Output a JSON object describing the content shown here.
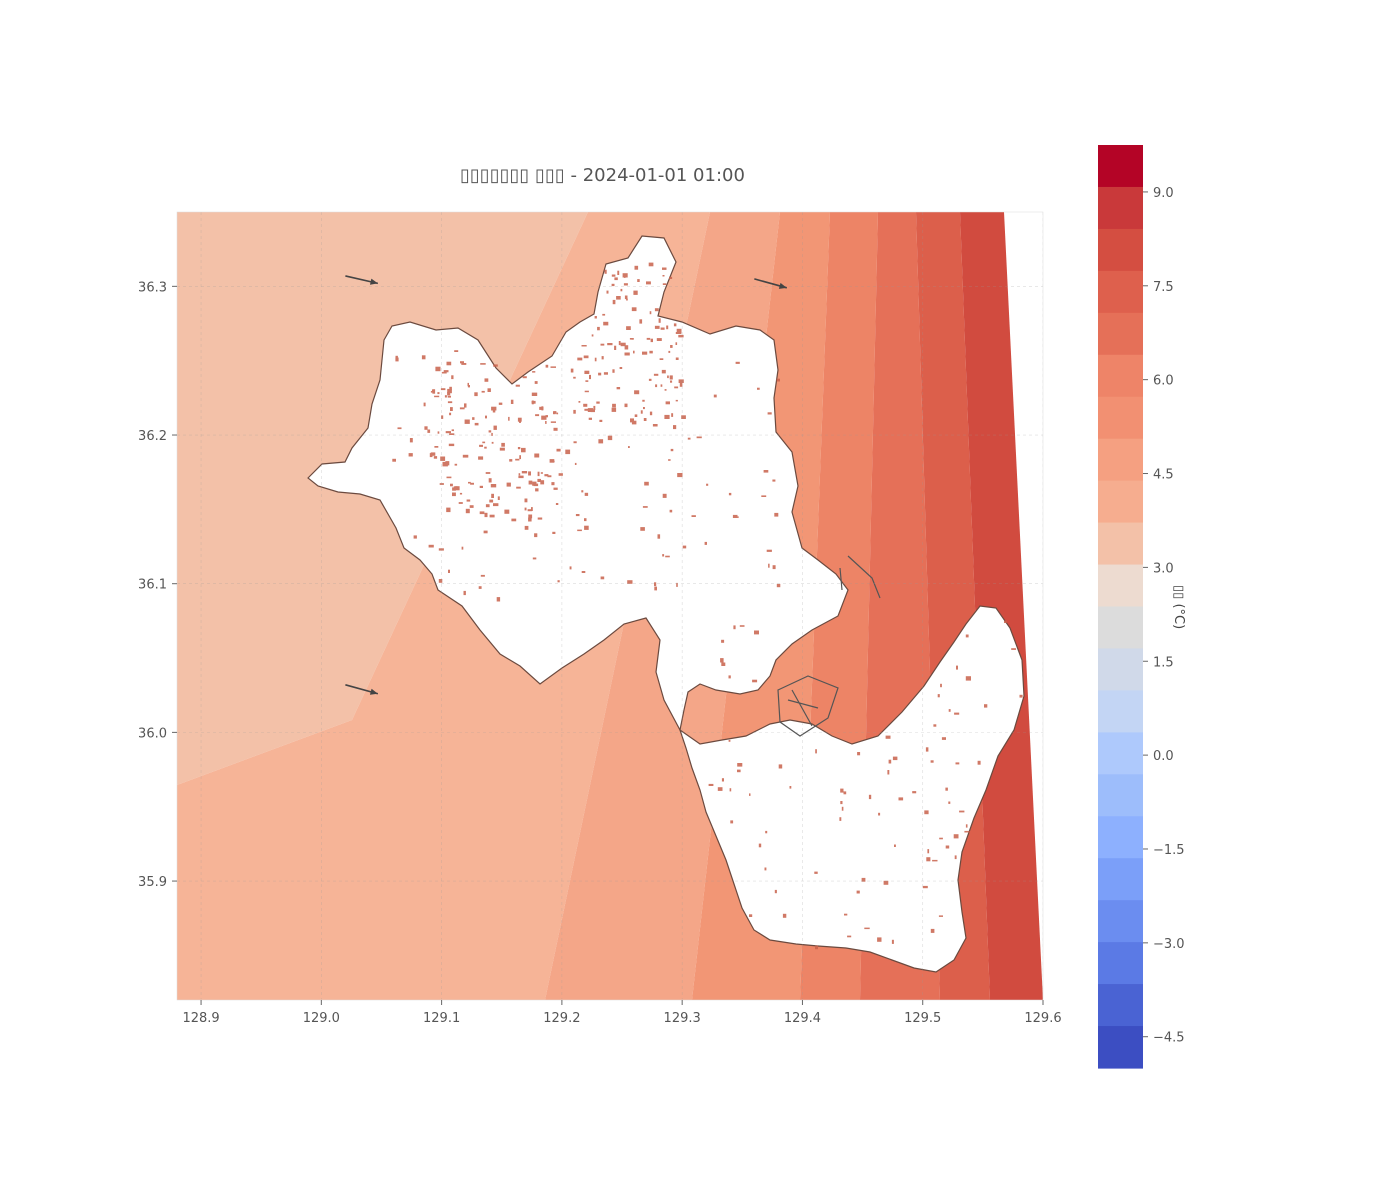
{
  "map": {
    "title": "▯▯▯▯▯▯▯ ▯▯▯ - 2024-01-01 01:00",
    "x_ticks": [
      "128.9",
      "129.0",
      "129.1",
      "129.2",
      "129.3",
      "129.4",
      "129.5",
      "129.6"
    ],
    "y_ticks": [
      "36.3",
      "36.2",
      "36.1",
      "36.0",
      "35.9"
    ],
    "extent": {
      "lon": [
        128.88,
        129.6
      ],
      "lat": [
        35.82,
        36.35
      ]
    },
    "wind_arrows": [
      {
        "lon": 129.02,
        "lat": 36.307,
        "dlon": 0.027,
        "dlat": -0.005
      },
      {
        "lon": 129.36,
        "lat": 36.305,
        "dlon": 0.027,
        "dlat": -0.006
      },
      {
        "lon": 129.02,
        "lat": 36.032,
        "dlon": 0.027,
        "dlat": -0.006
      }
    ]
  },
  "colorbar": {
    "label": "▯▯ (°C)",
    "ticks": [
      "9.0",
      "7.5",
      "6.0",
      "4.5",
      "3.0",
      "1.5",
      "0.0",
      "−1.5",
      "−3.0",
      "−4.5"
    ],
    "levels": [
      "#b40426",
      "#c9393a",
      "#d44e41",
      "#de604d",
      "#e57058",
      "#ee8468",
      "#f29072",
      "#f5a081",
      "#f6ad8f",
      "#f3c1a8",
      "#eddbd0",
      "#dcdcdc",
      "#d0d9e9",
      "#c3d5f4",
      "#aec9fc",
      "#9dbdfb",
      "#8db0fe",
      "#7b9ff9",
      "#6b8df0",
      "#5b7ae5",
      "#4a63d3",
      "#3c4ec2"
    ]
  },
  "colors": {
    "temp_bands": [
      "#f3c1a8",
      "#f6b497",
      "#f4a688",
      "#f29675",
      "#ed8466",
      "#e57058",
      "#dc5f4b",
      "#d14b3f"
    ]
  }
}
